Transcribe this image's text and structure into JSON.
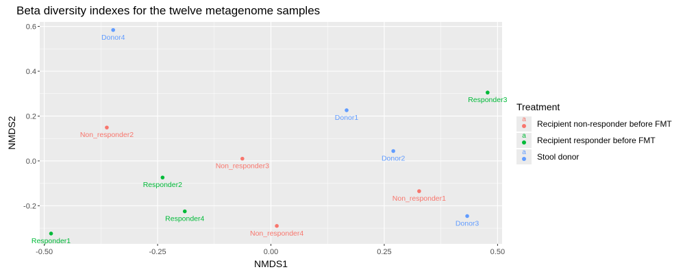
{
  "chart_data": {
    "type": "scatter",
    "title": "Beta diversity indexes for the twelve metagenome samples",
    "xlabel": "NMDS1",
    "ylabel": "NMDS2",
    "xlim": [
      -0.51,
      0.51
    ],
    "ylim": [
      -0.37,
      0.62
    ],
    "x_ticks": [
      -0.5,
      -0.25,
      0,
      0.25,
      0.5
    ],
    "x_tick_labels": [
      "-0.50",
      "-0.25",
      "0.00",
      "0.25",
      "0.50"
    ],
    "y_ticks": [
      -0.2,
      0,
      0.2,
      0.4,
      0.6
    ],
    "y_tick_labels": [
      "-0.2",
      "0.0",
      "0.2",
      "0.4",
      "0.6"
    ],
    "grid": true,
    "legend_position": "right",
    "legend_title": "Treatment",
    "legend_key_glyph": "a",
    "series": [
      {
        "name": "Recipient non-responder before FMT",
        "color": "#f8766d",
        "points": [
          {
            "label": "Non_responder2",
            "x": -0.362,
            "y": 0.149
          },
          {
            "label": "Non_responder3",
            "x": -0.063,
            "y": 0.01
          },
          {
            "label": "Non_responder1",
            "x": 0.327,
            "y": -0.135
          },
          {
            "label": "Non_responder4",
            "x": 0.013,
            "y": -0.29
          }
        ]
      },
      {
        "name": "Recipient responder before FMT",
        "color": "#00ba38",
        "points": [
          {
            "label": "Responder3",
            "x": 0.478,
            "y": 0.305
          },
          {
            "label": "Responder2",
            "x": -0.239,
            "y": -0.074
          },
          {
            "label": "Responder4",
            "x": -0.19,
            "y": -0.225
          },
          {
            "label": "Responder1",
            "x": -0.485,
            "y": -0.324
          }
        ]
      },
      {
        "name": "Stool donor",
        "color": "#619cff",
        "points": [
          {
            "label": "Donor4",
            "x": -0.348,
            "y": 0.584
          },
          {
            "label": "Donor1",
            "x": 0.167,
            "y": 0.226
          },
          {
            "label": "Donor2",
            "x": 0.27,
            "y": 0.044
          },
          {
            "label": "Donor3",
            "x": 0.433,
            "y": -0.246
          }
        ]
      }
    ]
  }
}
